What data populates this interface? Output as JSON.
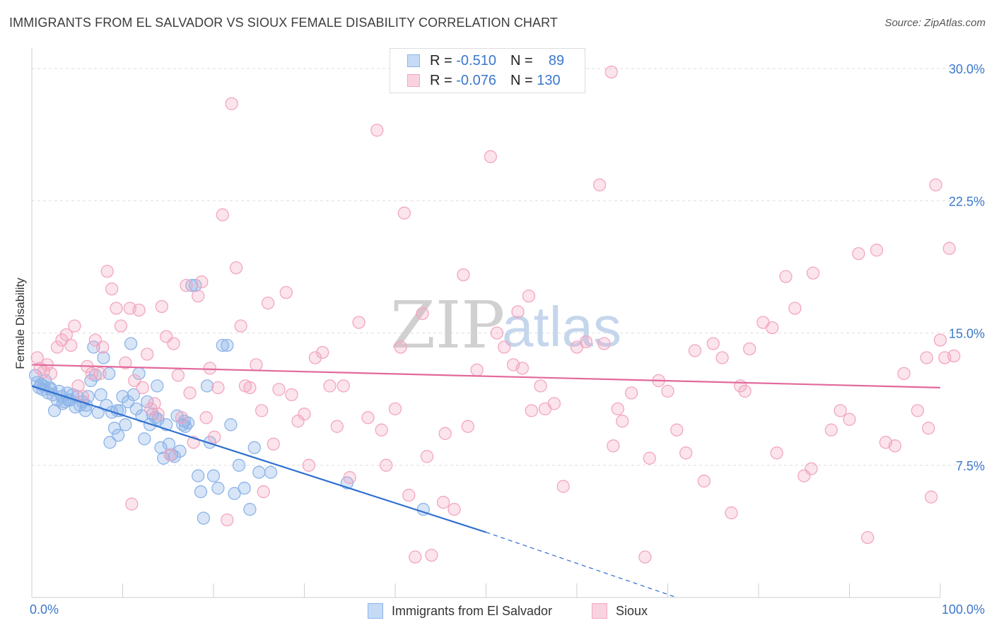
{
  "header": {
    "title": "IMMIGRANTS FROM EL SALVADOR VS SIOUX FEMALE DISABILITY CORRELATION CHART",
    "source": "Source: ZipAtlas.com"
  },
  "watermark": {
    "zip": "ZIP",
    "atlas": "atlas"
  },
  "legend": {
    "rows": [
      {
        "r_label": "R =",
        "r_value": "-0.510",
        "n_label": "N =",
        "n_value": "89",
        "color": "#8db4e8"
      },
      {
        "r_label": "R =",
        "r_value": "-0.076",
        "n_label": "N =",
        "n_value": "130",
        "color": "#f3a6c0"
      }
    ]
  },
  "bottom_legend": [
    {
      "label": "Immigrants from El Salvador",
      "color": "#8db4e8"
    },
    {
      "label": "Sioux",
      "color": "#f3a6c0"
    }
  ],
  "chart_data": {
    "type": "scatter",
    "title": "IMMIGRANTS FROM EL SALVADOR VS SIOUX FEMALE DISABILITY CORRELATION CHART",
    "xlabel": "",
    "ylabel": "Female Disability",
    "xlim": [
      0,
      100
    ],
    "ylim": [
      0,
      31
    ],
    "x_ticks": [
      {
        "value": 0,
        "label": "0.0%"
      },
      {
        "value": 100,
        "label": "100.0%"
      }
    ],
    "y_ticks": [
      {
        "value": 7.5,
        "label": "7.5%"
      },
      {
        "value": 15.0,
        "label": "15.0%"
      },
      {
        "value": 22.5,
        "label": "22.5%"
      },
      {
        "value": 30.0,
        "label": "30.0%"
      }
    ],
    "grid": true,
    "series": [
      {
        "name": "Immigrants from El Salvador",
        "color": "#8db4e8",
        "line_color": "#2f6fd0",
        "trend": {
          "x0": 0,
          "y0": 12.0,
          "x1": 50,
          "y1": 3.7,
          "dashed_to_x": 71,
          "dashed_to_y": 0.0
        },
        "points": [
          [
            0.4,
            12.6
          ],
          [
            0.6,
            12.2
          ],
          [
            0.8,
            11.9
          ],
          [
            1.0,
            12.1
          ],
          [
            1.2,
            11.8
          ],
          [
            1.5,
            12.3
          ],
          [
            1.8,
            11.6
          ],
          [
            2.0,
            11.9
          ],
          [
            2.3,
            11.5
          ],
          [
            2.5,
            10.6
          ],
          [
            2.8,
            11.2
          ],
          [
            3.0,
            11.7
          ],
          [
            3.3,
            11.4
          ],
          [
            3.6,
            11.1
          ],
          [
            3.9,
            11.6
          ],
          [
            4.2,
            11.2
          ],
          [
            4.5,
            11.5
          ],
          [
            4.8,
            10.8
          ],
          [
            5.0,
            11.4
          ],
          [
            5.3,
            10.9
          ],
          [
            5.6,
            11.1
          ],
          [
            5.9,
            10.6
          ],
          [
            6.2,
            11.4
          ],
          [
            6.5,
            12.3
          ],
          [
            6.8,
            14.2
          ],
          [
            7.0,
            12.6
          ],
          [
            7.3,
            10.5
          ],
          [
            7.6,
            11.5
          ],
          [
            7.9,
            13.6
          ],
          [
            8.2,
            10.9
          ],
          [
            8.5,
            12.7
          ],
          [
            8.8,
            10.5
          ],
          [
            9.1,
            9.6
          ],
          [
            9.4,
            10.6
          ],
          [
            9.7,
            10.6
          ],
          [
            10.0,
            11.4
          ],
          [
            10.3,
            9.8
          ],
          [
            10.6,
            11.1
          ],
          [
            10.9,
            14.4
          ],
          [
            11.2,
            11.5
          ],
          [
            11.5,
            10.7
          ],
          [
            11.8,
            12.7
          ],
          [
            12.1,
            10.3
          ],
          [
            12.4,
            9.0
          ],
          [
            12.7,
            11.1
          ],
          [
            13.0,
            9.8
          ],
          [
            13.3,
            10.4
          ],
          [
            13.6,
            10.2
          ],
          [
            13.9,
            10.1
          ],
          [
            14.2,
            8.5
          ],
          [
            14.5,
            7.9
          ],
          [
            14.8,
            9.8
          ],
          [
            15.1,
            8.7
          ],
          [
            15.4,
            8.1
          ],
          [
            15.7,
            8.0
          ],
          [
            16.0,
            10.3
          ],
          [
            16.3,
            8.3
          ],
          [
            16.6,
            9.8
          ],
          [
            16.9,
            9.7
          ],
          [
            17.2,
            9.9
          ],
          [
            17.6,
            17.7
          ],
          [
            18.0,
            17.7
          ],
          [
            18.3,
            6.9
          ],
          [
            18.6,
            6.0
          ],
          [
            18.9,
            4.5
          ],
          [
            19.3,
            12.0
          ],
          [
            19.6,
            8.8
          ],
          [
            20.0,
            6.9
          ],
          [
            20.5,
            6.2
          ],
          [
            21.0,
            14.3
          ],
          [
            21.5,
            14.3
          ],
          [
            21.9,
            9.8
          ],
          [
            22.3,
            5.9
          ],
          [
            22.8,
            7.5
          ],
          [
            23.4,
            6.2
          ],
          [
            24.0,
            5.0
          ],
          [
            24.5,
            8.5
          ],
          [
            25.0,
            7.1
          ],
          [
            1.3,
            12.0
          ],
          [
            2.1,
            11.8
          ],
          [
            3.4,
            11.0
          ],
          [
            4.0,
            11.2
          ],
          [
            6.0,
            10.9
          ],
          [
            8.6,
            8.8
          ],
          [
            9.5,
            9.2
          ],
          [
            13.8,
            12.0
          ],
          [
            16.8,
            10.0
          ],
          [
            26.3,
            7.1
          ],
          [
            34.7,
            6.5
          ],
          [
            43.1,
            5.0
          ]
        ]
      },
      {
        "name": "Sioux",
        "color": "#f3a6c0",
        "line_color": "#e2699a",
        "trend": {
          "x0": 0,
          "y0": 13.2,
          "x1": 100,
          "y1": 11.9
        },
        "points": [
          [
            0.6,
            13.6
          ],
          [
            0.9,
            13.0
          ],
          [
            1.3,
            12.8
          ],
          [
            1.7,
            13.2
          ],
          [
            2.1,
            12.7
          ],
          [
            2.8,
            14.2
          ],
          [
            3.3,
            14.6
          ],
          [
            3.8,
            14.9
          ],
          [
            4.3,
            14.3
          ],
          [
            4.7,
            15.4
          ],
          [
            5.1,
            12.0
          ],
          [
            5.6,
            11.4
          ],
          [
            6.1,
            13.1
          ],
          [
            6.6,
            12.7
          ],
          [
            7.0,
            14.6
          ],
          [
            7.5,
            12.7
          ],
          [
            7.8,
            14.2
          ],
          [
            8.3,
            18.5
          ],
          [
            8.8,
            17.5
          ],
          [
            9.3,
            16.4
          ],
          [
            9.8,
            15.4
          ],
          [
            10.3,
            13.3
          ],
          [
            10.8,
            16.4
          ],
          [
            11.3,
            12.3
          ],
          [
            11.8,
            16.3
          ],
          [
            12.2,
            11.9
          ],
          [
            12.7,
            13.8
          ],
          [
            13.1,
            10.7
          ],
          [
            13.5,
            11.0
          ],
          [
            13.9,
            10.4
          ],
          [
            14.3,
            16.5
          ],
          [
            14.8,
            14.8
          ],
          [
            15.2,
            8.1
          ],
          [
            15.6,
            14.4
          ],
          [
            16.1,
            12.6
          ],
          [
            16.5,
            10.2
          ],
          [
            17.0,
            17.7
          ],
          [
            17.4,
            11.6
          ],
          [
            17.8,
            8.8
          ],
          [
            18.3,
            17.1
          ],
          [
            18.7,
            17.9
          ],
          [
            19.2,
            10.2
          ],
          [
            19.6,
            13.0
          ],
          [
            20.1,
            9.1
          ],
          [
            20.5,
            11.9
          ],
          [
            21.0,
            21.7
          ],
          [
            21.5,
            4.4
          ],
          [
            22.0,
            28.0
          ],
          [
            22.5,
            18.7
          ],
          [
            23.0,
            15.4
          ],
          [
            23.5,
            12.0
          ],
          [
            24.0,
            11.9
          ],
          [
            24.7,
            13.2
          ],
          [
            25.3,
            10.6
          ],
          [
            26.0,
            16.7
          ],
          [
            26.6,
            8.7
          ],
          [
            27.2,
            11.8
          ],
          [
            28.0,
            17.3
          ],
          [
            28.6,
            11.5
          ],
          [
            29.3,
            10.0
          ],
          [
            30.0,
            10.4
          ],
          [
            30.5,
            7.5
          ],
          [
            31.2,
            13.6
          ],
          [
            32.0,
            13.9
          ],
          [
            32.8,
            12.0
          ],
          [
            33.6,
            9.7
          ],
          [
            34.3,
            12.0
          ],
          [
            35.0,
            6.8
          ],
          [
            36.0,
            15.6
          ],
          [
            37.0,
            10.2
          ],
          [
            38.0,
            26.5
          ],
          [
            38.5,
            9.5
          ],
          [
            39.0,
            7.5
          ],
          [
            40.0,
            10.7
          ],
          [
            40.6,
            14.2
          ],
          [
            41.0,
            21.8
          ],
          [
            41.5,
            5.8
          ],
          [
            42.2,
            2.3
          ],
          [
            43.0,
            16.1
          ],
          [
            43.5,
            8.0
          ],
          [
            44.0,
            2.4
          ],
          [
            45.3,
            5.4
          ],
          [
            46.5,
            5.0
          ],
          [
            47.5,
            18.3
          ],
          [
            48.0,
            9.7
          ],
          [
            49.0,
            12.9
          ],
          [
            50.5,
            25.0
          ],
          [
            51.2,
            15.0
          ],
          [
            52.0,
            14.2
          ],
          [
            53.0,
            13.2
          ],
          [
            53.5,
            16.2
          ],
          [
            54.0,
            13.0
          ],
          [
            54.7,
            17.1
          ],
          [
            55.0,
            10.6
          ],
          [
            56.0,
            12.0
          ],
          [
            56.5,
            10.7
          ],
          [
            57.5,
            11.0
          ],
          [
            58.5,
            6.3
          ],
          [
            60.0,
            14.2
          ],
          [
            61.0,
            14.5
          ],
          [
            62.5,
            23.4
          ],
          [
            63.0,
            14.4
          ],
          [
            64.0,
            8.6
          ],
          [
            64.5,
            10.7
          ],
          [
            65.0,
            10.0
          ],
          [
            66.0,
            11.6
          ],
          [
            67.5,
            2.3
          ],
          [
            68.0,
            7.9
          ],
          [
            69.0,
            12.3
          ],
          [
            70.0,
            11.7
          ],
          [
            71.0,
            9.5
          ],
          [
            72.0,
            8.2
          ],
          [
            73.0,
            14.0
          ],
          [
            74.0,
            6.6
          ],
          [
            75.0,
            14.4
          ],
          [
            76.0,
            13.6
          ],
          [
            77.0,
            4.8
          ],
          [
            78.0,
            12.0
          ],
          [
            78.5,
            11.7
          ],
          [
            79.0,
            14.1
          ],
          [
            80.5,
            15.6
          ],
          [
            81.5,
            15.3
          ],
          [
            82.0,
            8.2
          ],
          [
            83.0,
            18.2
          ],
          [
            84.0,
            16.4
          ],
          [
            85.0,
            6.9
          ],
          [
            85.8,
            7.3
          ],
          [
            86.0,
            18.4
          ],
          [
            88.0,
            9.5
          ],
          [
            89.0,
            10.6
          ],
          [
            90.0,
            10.1
          ],
          [
            91.0,
            19.5
          ],
          [
            92.0,
            3.4
          ],
          [
            93.0,
            19.7
          ],
          [
            94.0,
            8.8
          ],
          [
            95.0,
            8.6
          ],
          [
            96.0,
            12.7
          ],
          [
            97.5,
            10.6
          ],
          [
            98.7,
            9.6
          ],
          [
            99.0,
            5.7
          ],
          [
            98.5,
            13.6
          ],
          [
            99.5,
            23.4
          ],
          [
            100.0,
            14.6
          ],
          [
            100.5,
            13.6
          ],
          [
            101.0,
            19.8
          ],
          [
            101.5,
            13.7
          ],
          [
            63.8,
            29.8
          ],
          [
            11.0,
            5.3
          ],
          [
            25.5,
            6.0
          ],
          [
            45.5,
            9.3
          ]
        ]
      }
    ]
  }
}
